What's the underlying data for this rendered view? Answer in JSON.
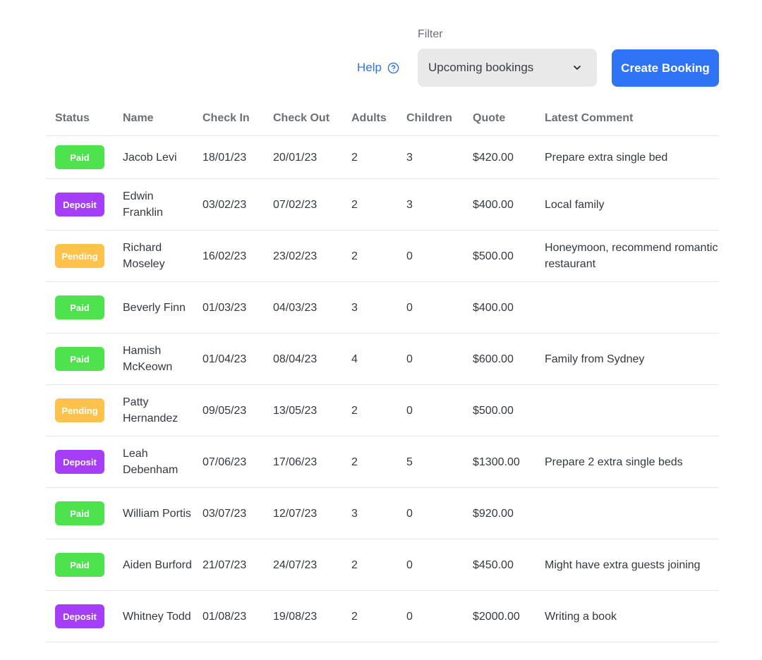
{
  "toolbar": {
    "help_label": "Help",
    "help_icon": "question-circle-icon",
    "filter_label": "Filter",
    "filter_value": "Upcoming bookings",
    "filter_icon": "chevron-down-icon",
    "create_label": "Create Booking"
  },
  "colors": {
    "accent": "#2f74f5",
    "paid": "#4ee24e",
    "deposit": "#a63ef7",
    "pending": "#fcc24b"
  },
  "table": {
    "columns": [
      "Status",
      "Name",
      "Check In",
      "Check Out",
      "Adults",
      "Children",
      "Quote",
      "Latest Comment"
    ],
    "rows": [
      {
        "status": "Paid",
        "status_color": "#4ee24e",
        "name": "Jacob Levi",
        "check_in": "18/01/23",
        "check_out": "20/01/23",
        "adults": "2",
        "children": "3",
        "quote": "$420.00",
        "comment": "Prepare extra single bed"
      },
      {
        "status": "Deposit",
        "status_color": "#a63ef7",
        "name": "Edwin Franklin",
        "check_in": "03/02/23",
        "check_out": "07/02/23",
        "adults": "2",
        "children": "3",
        "quote": "$400.00",
        "comment": "Local family"
      },
      {
        "status": "Pending",
        "status_color": "#fcc24b",
        "name": "Richard Moseley",
        "check_in": "16/02/23",
        "check_out": "23/02/23",
        "adults": "2",
        "children": "0",
        "quote": "$500.00",
        "comment": "Honeymoon, recommend romantic restaurant"
      },
      {
        "status": "Paid",
        "status_color": "#4ee24e",
        "name": "Beverly Finn",
        "check_in": "01/03/23",
        "check_out": "04/03/23",
        "adults": "3",
        "children": "0",
        "quote": "$400.00",
        "comment": ""
      },
      {
        "status": "Paid",
        "status_color": "#4ee24e",
        "name": "Hamish McKeown",
        "check_in": "01/04/23",
        "check_out": "08/04/23",
        "adults": "4",
        "children": "0",
        "quote": "$600.00",
        "comment": "Family from Sydney"
      },
      {
        "status": "Pending",
        "status_color": "#fcc24b",
        "name": "Patty Hernandez",
        "check_in": "09/05/23",
        "check_out": "13/05/23",
        "adults": "2",
        "children": "0",
        "quote": "$500.00",
        "comment": ""
      },
      {
        "status": "Deposit",
        "status_color": "#a63ef7",
        "name": "Leah Debenham",
        "check_in": "07/06/23",
        "check_out": "17/06/23",
        "adults": "2",
        "children": "5",
        "quote": "$1300.00",
        "comment": "Prepare 2 extra single beds"
      },
      {
        "status": "Paid",
        "status_color": "#4ee24e",
        "name": "William Portis",
        "check_in": "03/07/23",
        "check_out": "12/07/23",
        "adults": "3",
        "children": "0",
        "quote": "$920.00",
        "comment": ""
      },
      {
        "status": "Paid",
        "status_color": "#4ee24e",
        "name": "Aiden Burford",
        "check_in": "21/07/23",
        "check_out": "24/07/23",
        "adults": "2",
        "children": "0",
        "quote": "$450.00",
        "comment": "Might have extra guests joining"
      },
      {
        "status": "Deposit",
        "status_color": "#a63ef7",
        "name": "Whitney Todd",
        "check_in": "01/08/23",
        "check_out": "19/08/23",
        "adults": "2",
        "children": "0",
        "quote": "$2000.00",
        "comment": "Writing a book"
      }
    ]
  }
}
